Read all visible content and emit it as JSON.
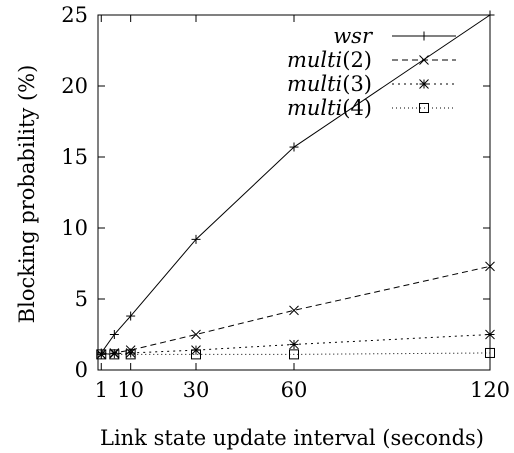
{
  "chart_data": {
    "type": "line",
    "title": "",
    "xlabel": "Link state update interval (seconds)",
    "ylabel": "Blocking probability (%)",
    "xlim": [
      0,
      120
    ],
    "ylim": [
      0,
      25
    ],
    "xticks": [
      1,
      10,
      30,
      60,
      120
    ],
    "yticks": [
      0,
      5,
      10,
      15,
      20,
      25
    ],
    "grid": false,
    "legend_position": "top-right",
    "series": [
      {
        "name": "wsr",
        "name_base": "wsr",
        "name_arg": "",
        "marker": "plus",
        "dash": "",
        "x": [
          1,
          5,
          10,
          30,
          60,
          120
        ],
        "y": [
          1.2,
          2.5,
          3.8,
          9.2,
          15.7,
          25.0
        ]
      },
      {
        "name": "multi(2)",
        "name_base": "multi",
        "name_arg": "(2)",
        "marker": "x",
        "dash": "6,4",
        "x": [
          1,
          5,
          10,
          30,
          60,
          120
        ],
        "y": [
          1.1,
          1.2,
          1.4,
          2.5,
          4.2,
          7.3
        ]
      },
      {
        "name": "multi(3)",
        "name_base": "multi",
        "name_arg": "(3)",
        "marker": "star",
        "dash": "2,4",
        "x": [
          1,
          5,
          10,
          30,
          60,
          120
        ],
        "y": [
          1.1,
          1.15,
          1.2,
          1.4,
          1.8,
          2.5
        ]
      },
      {
        "name": "multi(4)",
        "name_base": "multi",
        "name_arg": "(4)",
        "marker": "square",
        "dash": "1,3",
        "x": [
          1,
          5,
          10,
          30,
          60,
          120
        ],
        "y": [
          1.1,
          1.1,
          1.1,
          1.1,
          1.1,
          1.2
        ]
      }
    ]
  }
}
